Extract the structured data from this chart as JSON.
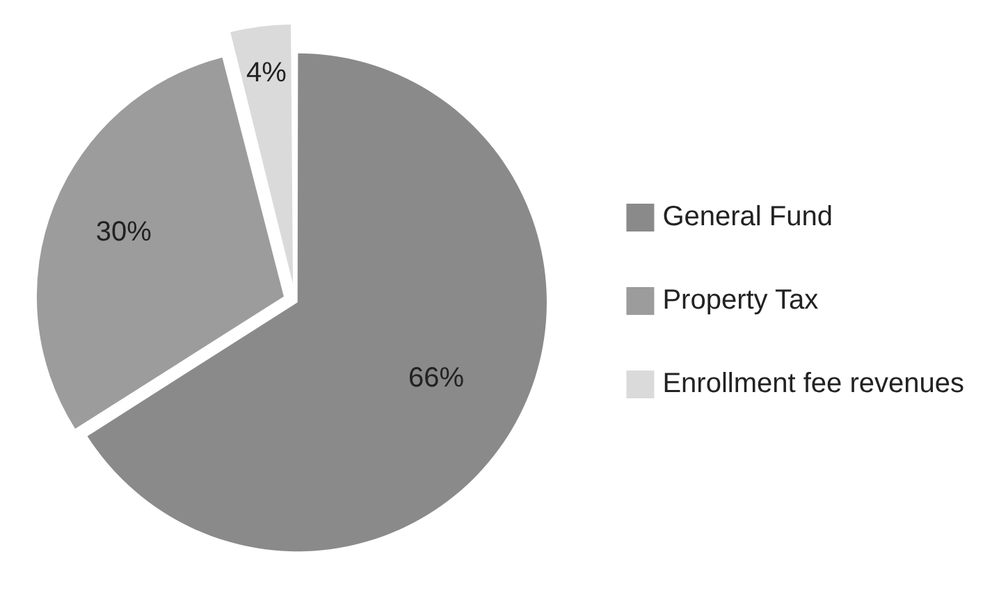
{
  "chart_data": {
    "type": "pie",
    "categories": [
      "General Fund",
      "Property Tax",
      "Enrollment fee revenues"
    ],
    "values": [
      66,
      30,
      4
    ],
    "colors": [
      "#8a8a8a",
      "#9c9c9c",
      "#dadada"
    ],
    "value_labels": [
      "66%",
      "30%",
      "4%"
    ],
    "legend": "right"
  }
}
